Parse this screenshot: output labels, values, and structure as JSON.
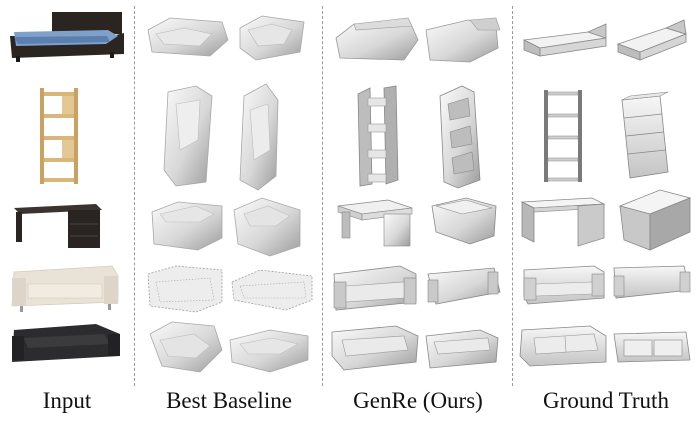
{
  "columns": [
    {
      "key": "input",
      "label": "Input"
    },
    {
      "key": "baseline",
      "label": "Best Baseline"
    },
    {
      "key": "genre",
      "label": "GenRe (Ours)"
    },
    {
      "key": "gt",
      "label": "Ground Truth"
    }
  ],
  "rows": [
    {
      "object": "bed"
    },
    {
      "object": "bookshelf"
    },
    {
      "object": "desk"
    },
    {
      "object": "sofa-beige"
    },
    {
      "object": "sofa-black"
    }
  ],
  "colors": {
    "bed_frame": "#2b2522",
    "bed_sheet": "#7fa0c8",
    "shelf_wood": "#d9b77a",
    "desk": "#2a2523",
    "sofa_beige": "#e9e2d6",
    "sofa_black": "#2c2c2e",
    "mesh_light": "#f1f1f1",
    "mesh_mid": "#c9c9c9",
    "mesh_dark": "#8d8d8d",
    "gt_light": "#f4f4f4",
    "gt_mid": "#cfcfcf",
    "gt_dark": "#9b9b9b",
    "divider": "#9a9a9a"
  }
}
